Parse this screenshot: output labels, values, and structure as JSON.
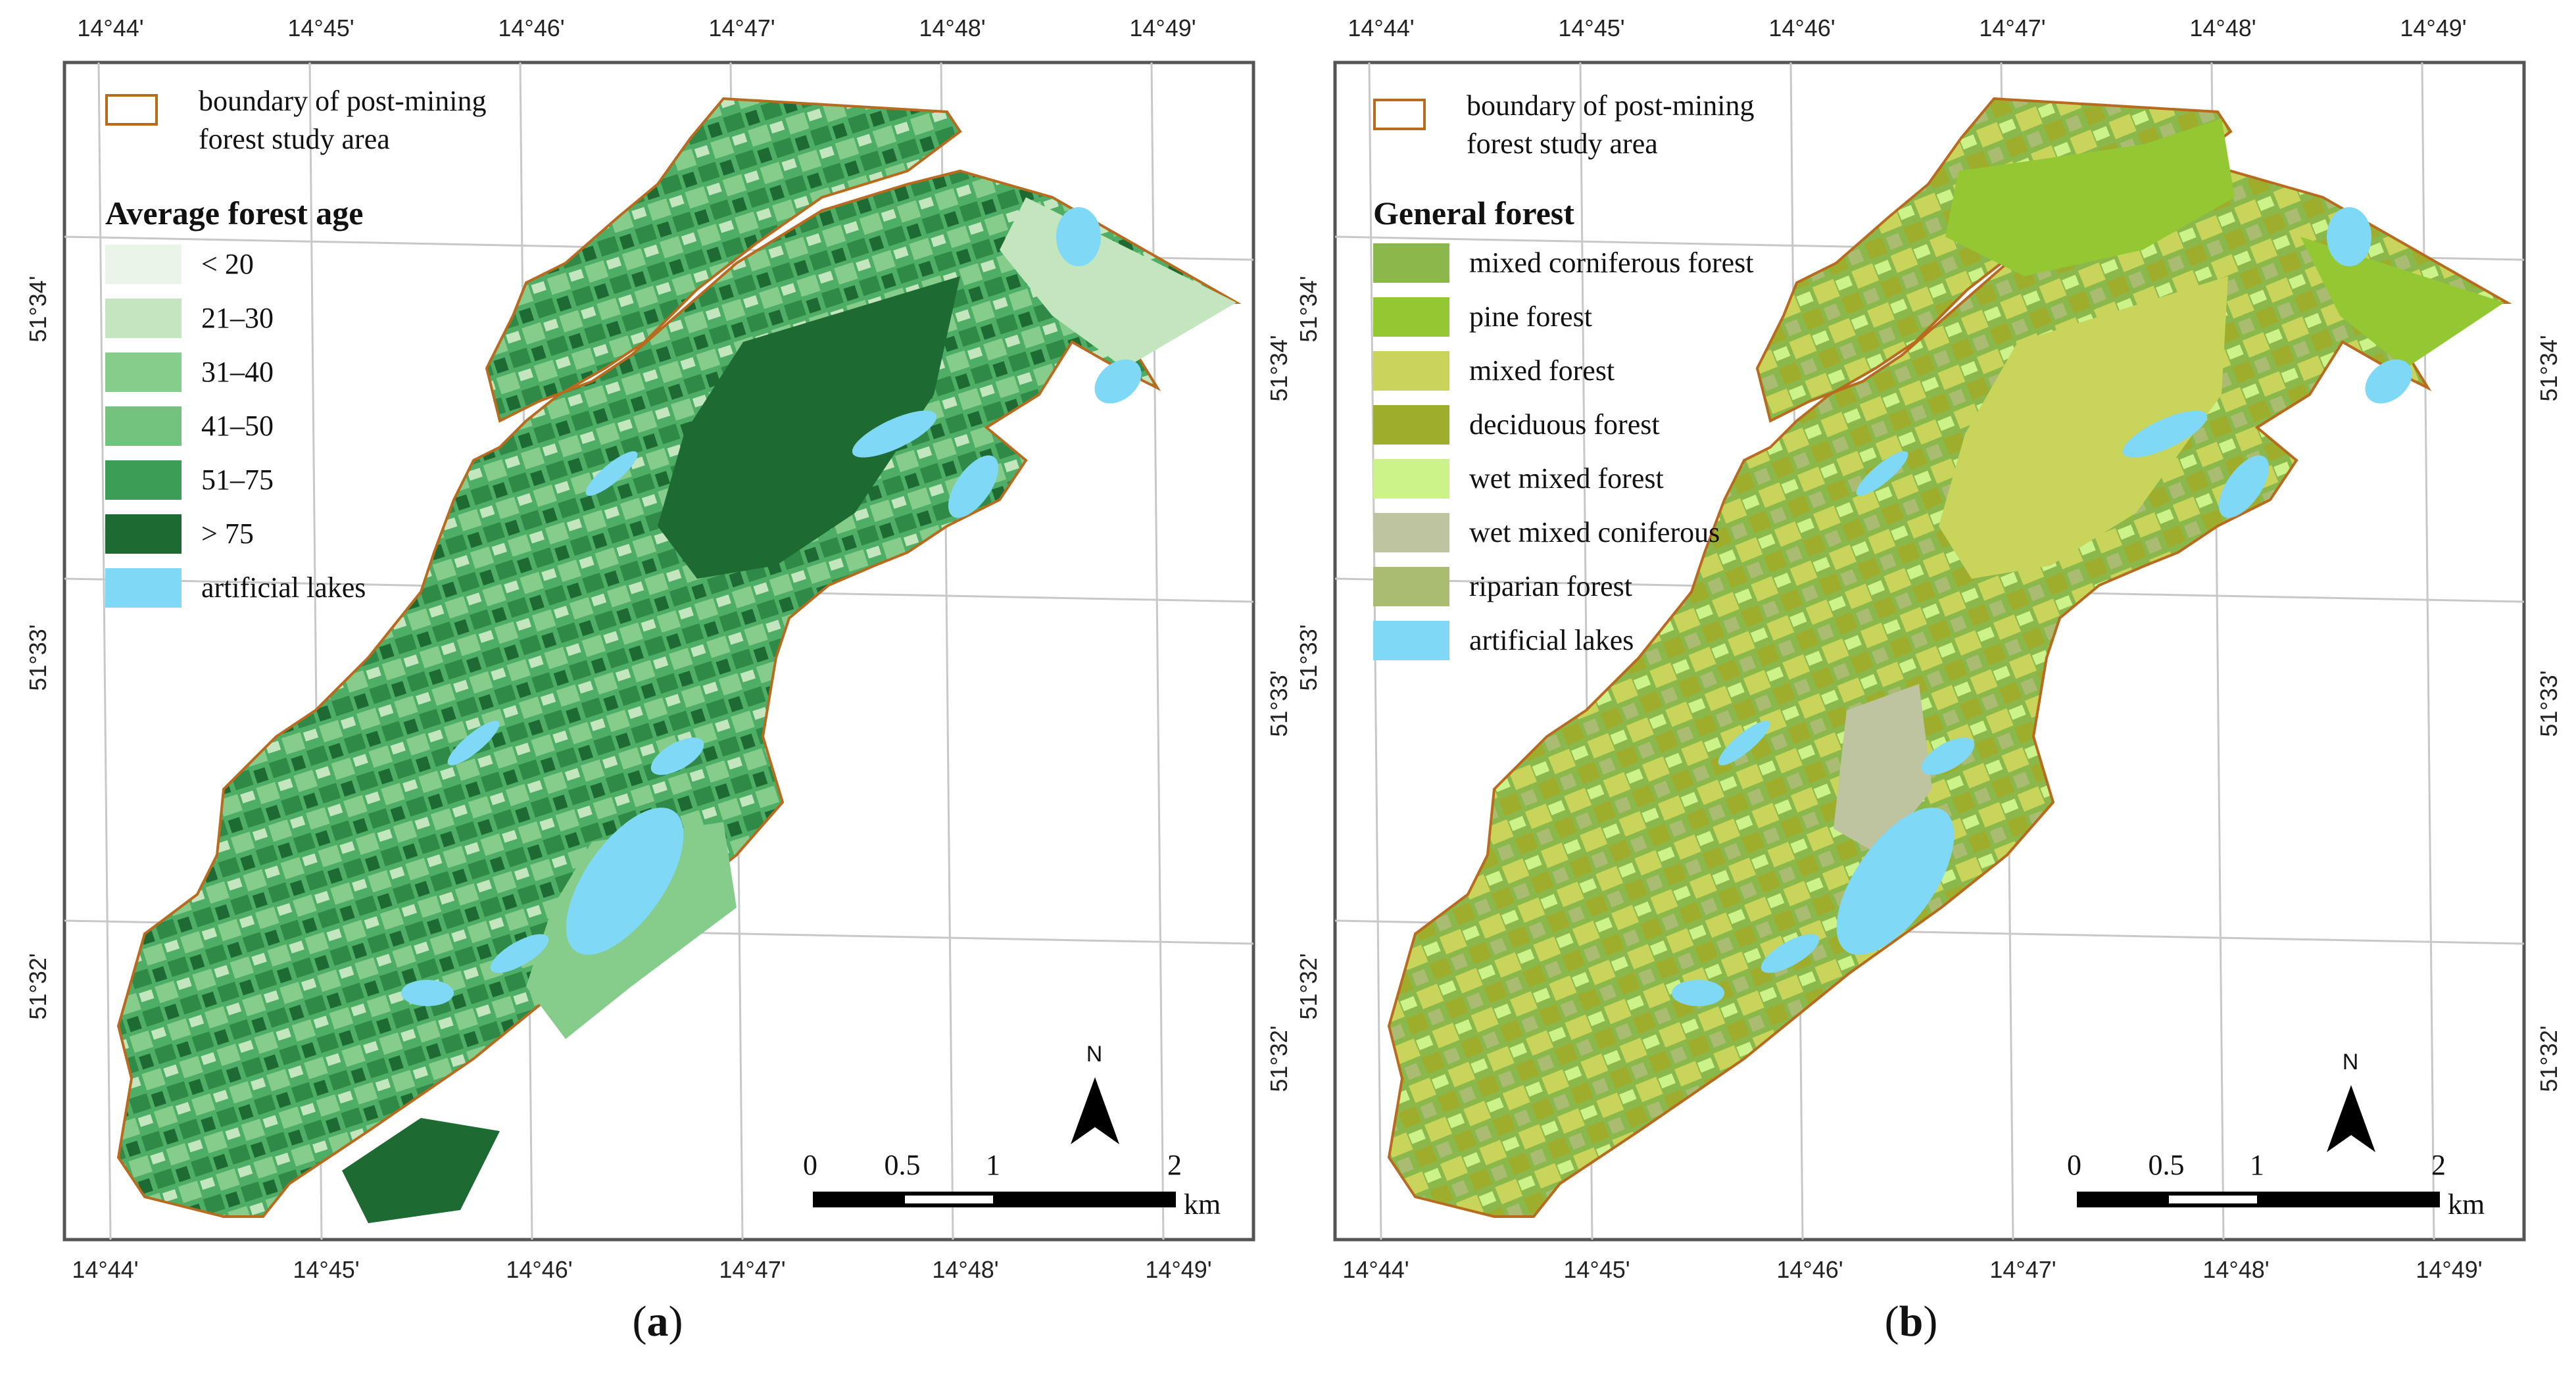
{
  "ticks": {
    "lon_top": [
      "14°44'",
      "14°45'",
      "14°46'",
      "14°47'",
      "14°48'",
      "14°49'"
    ],
    "lon_bottom": [
      "14°44'",
      "14°45'",
      "14°46'",
      "14°47'",
      "14°48'",
      "14°49'"
    ],
    "lat_left": [
      "51°34'",
      "51°33'",
      "51°32'"
    ],
    "lat_right": [
      "51°34'",
      "51°33'",
      "51°32'"
    ]
  },
  "boundary_legend": {
    "line1": "boundary of post-mining",
    "line2": "forest study area"
  },
  "panel_a": {
    "caption_letter": "a",
    "legend_title": "Average forest age",
    "classes": [
      {
        "label": "< 20",
        "color": "#e9f5e6"
      },
      {
        "label": "21–30",
        "color": "#c4e6bf"
      },
      {
        "label": "31–40",
        "color": "#86cc8a"
      },
      {
        "label": "41–50",
        "color": "#73c27d"
      },
      {
        "label": "51–75",
        "color": "#3c9e56"
      },
      {
        "label": "> 75",
        "color": "#1d6b33"
      },
      {
        "label": "artificial lakes",
        "color": "#7fd8f5"
      }
    ]
  },
  "panel_b": {
    "caption_letter": "b",
    "legend_title": "General forest",
    "classes": [
      {
        "label": "mixed corniferous forest",
        "color": "#8bb84a"
      },
      {
        "label": "pine forest",
        "color": "#93c832"
      },
      {
        "label": "mixed forest",
        "color": "#c8d45a"
      },
      {
        "label": "deciduous forest",
        "color": "#9eae2c"
      },
      {
        "label": "wet mixed forest",
        "color": "#ccf28a"
      },
      {
        "label": "wet mixed coniferous",
        "color": "#bfc4a0"
      },
      {
        "label": "riparian forest",
        "color": "#aabb72"
      },
      {
        "label": "artificial lakes",
        "color": "#7fd8f5"
      }
    ]
  },
  "scale_bar": {
    "labels": [
      "0",
      "0.5",
      "1",
      "2"
    ],
    "unit": "km"
  },
  "north_arrow": {
    "label": "N"
  },
  "colors": {
    "boundary": "#b86a1e",
    "frame": "#555555",
    "grid": "#c8c8c8"
  }
}
